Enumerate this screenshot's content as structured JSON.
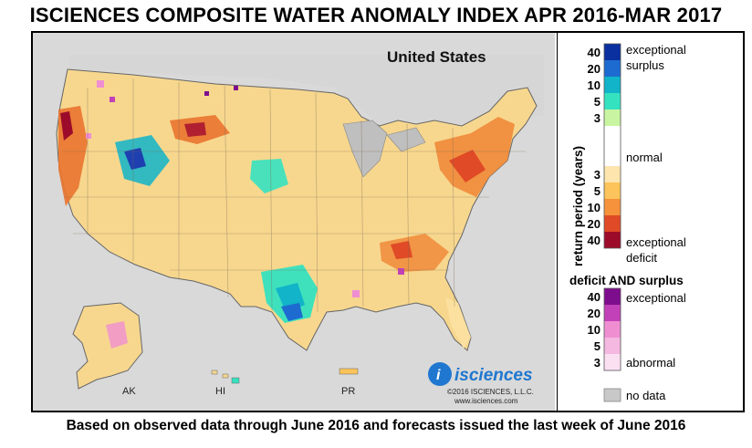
{
  "title": "ISCIENCES COMPOSITE WATER ANOMALY INDEX APR 2016-MAR 2017",
  "footer": "Based on observed data through June 2016 and forecasts issued the last week of June 2016",
  "map": {
    "country_label": "United States",
    "region_labels": {
      "alaska": "AK",
      "hawaii": "HI",
      "puerto_rico": "PR"
    },
    "brand": "isciences",
    "brand_letter": "i",
    "copyright": "©2016 ISCIENCES, L.L.C.",
    "website": "www.isciences.com"
  },
  "legend": {
    "axis_label": "return period (years)",
    "surplus_label_line1": "exceptional",
    "surplus_label_line2": "surplus",
    "normal_label": "normal",
    "deficit_label_line1": "exceptional",
    "deficit_label_line2": "deficit",
    "surplus_ticks": [
      "40",
      "20",
      "10",
      "5",
      "3"
    ],
    "deficit_ticks": [
      "3",
      "5",
      "10",
      "20",
      "40"
    ],
    "both_title": "deficit AND surplus",
    "both_top_label": "exceptional",
    "both_bottom_label": "abnormal",
    "both_ticks": [
      "40",
      "20",
      "10",
      "5",
      "3"
    ],
    "nodata_label": "no data",
    "surplus_colors": [
      "#0a2f9e",
      "#1d6bd0",
      "#11b4c9",
      "#35e2c0",
      "#c9f5a2"
    ],
    "deficit_colors": [
      "#fde5ad",
      "#fcc45a",
      "#f5923b",
      "#e04a26",
      "#9c0c2a"
    ],
    "both_colors": [
      "#7e0d8e",
      "#c241b8",
      "#ef8fd2",
      "#f5b8e1",
      "#fbe0f2"
    ],
    "nodata_color": "#c8c8c8"
  }
}
